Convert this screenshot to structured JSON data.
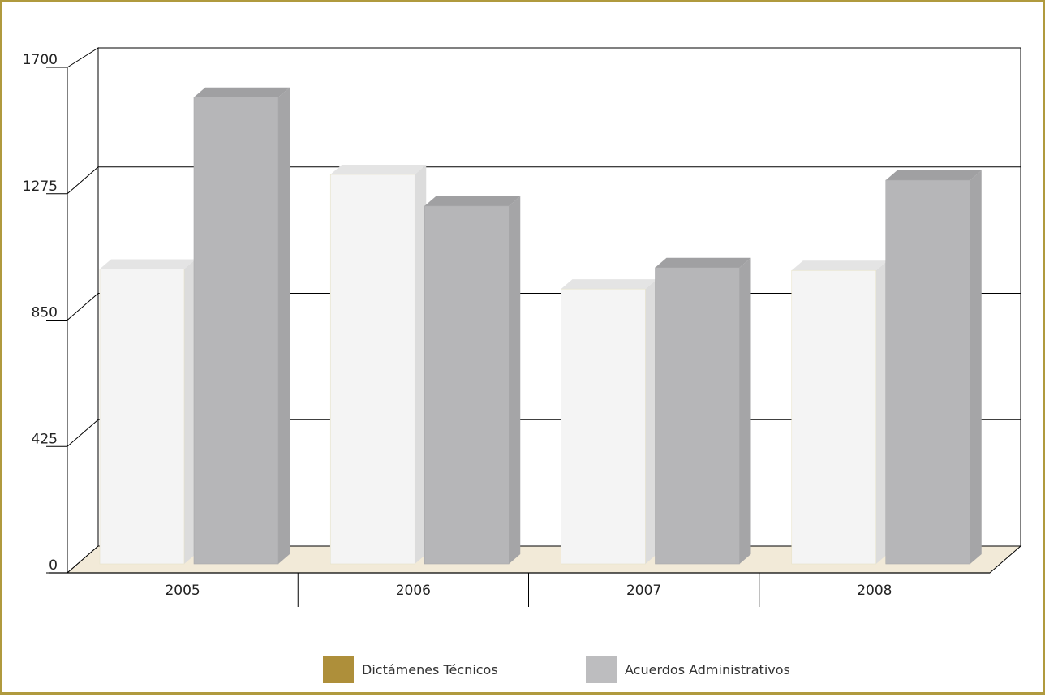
{
  "colors": {
    "border": "#b09a3e",
    "floor": "#f2ead8",
    "gridline": "#000000",
    "dictamenes_front": "#f4f4f4",
    "dictamenes_side": "#dcdcdc",
    "dictamenes_top": "#e4e4e4",
    "acuerdos_front": "#b6b6b8",
    "acuerdos_side": "#a5a5a7",
    "acuerdos_top": "#a0a0a2",
    "legend_dictamenes": "#ae8f3a",
    "legend_acuerdos": "#bdbdbf"
  },
  "chart_data": {
    "type": "bar",
    "style": "3d-clustered-column",
    "categories": [
      "2005",
      "2006",
      "2007",
      "2008"
    ],
    "series": [
      {
        "name": "Dictámenes Técnicos",
        "values": [
          1030,
          1360,
          960,
          1025
        ]
      },
      {
        "name": "Acuerdos Administrativos",
        "values": [
          1630,
          1250,
          1035,
          1340
        ]
      }
    ],
    "yticks": [
      "0",
      "425",
      "850",
      "1275",
      "1700"
    ],
    "ylim": [
      0,
      1700
    ],
    "grid": true,
    "legend_position": "bottom"
  }
}
